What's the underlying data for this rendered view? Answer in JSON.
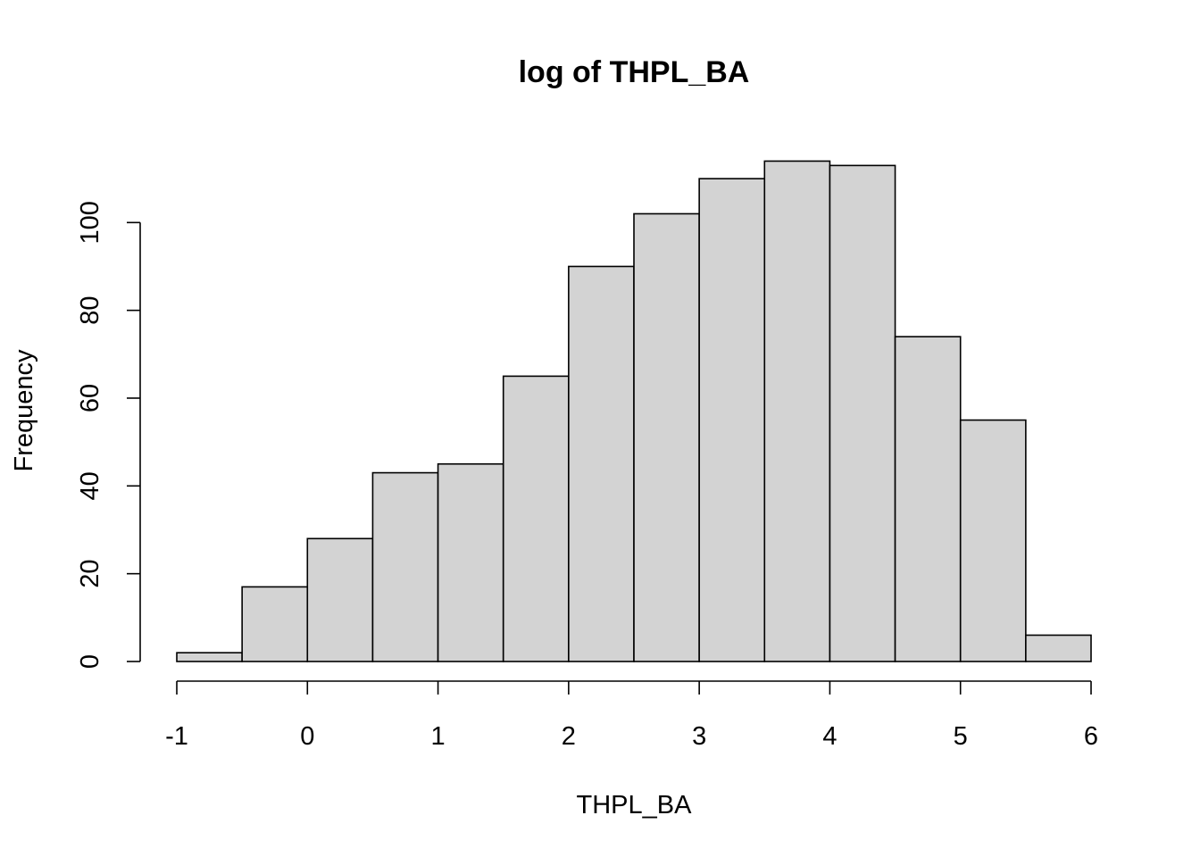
{
  "chart_data": {
    "type": "bar",
    "title": "log of THPL_BA",
    "xlabel": "THPL_BA",
    "ylabel": "Frequency",
    "bins": [
      {
        "start": -1.0,
        "end": -0.5,
        "count": 2
      },
      {
        "start": -0.5,
        "end": 0.0,
        "count": 17
      },
      {
        "start": 0.0,
        "end": 0.5,
        "count": 28
      },
      {
        "start": 0.5,
        "end": 1.0,
        "count": 43
      },
      {
        "start": 1.0,
        "end": 1.5,
        "count": 45
      },
      {
        "start": 1.5,
        "end": 2.0,
        "count": 65
      },
      {
        "start": 2.0,
        "end": 2.5,
        "count": 90
      },
      {
        "start": 2.5,
        "end": 3.0,
        "count": 102
      },
      {
        "start": 3.0,
        "end": 3.5,
        "count": 110
      },
      {
        "start": 3.5,
        "end": 4.0,
        "count": 114
      },
      {
        "start": 4.0,
        "end": 4.5,
        "count": 113
      },
      {
        "start": 4.5,
        "end": 5.0,
        "count": 74
      },
      {
        "start": 5.0,
        "end": 5.5,
        "count": 55
      },
      {
        "start": 5.5,
        "end": 6.0,
        "count": 6
      }
    ],
    "xlim": [
      -1,
      6
    ],
    "ylim": [
      0,
      114
    ],
    "x_ticks": [
      "-1",
      "0",
      "1",
      "2",
      "3",
      "4",
      "5",
      "6"
    ],
    "y_ticks": [
      "0",
      "20",
      "40",
      "60",
      "80",
      "100"
    ],
    "bar_fill": "#d3d3d3",
    "bar_stroke": "#000000",
    "grid": false,
    "legend": "none"
  }
}
